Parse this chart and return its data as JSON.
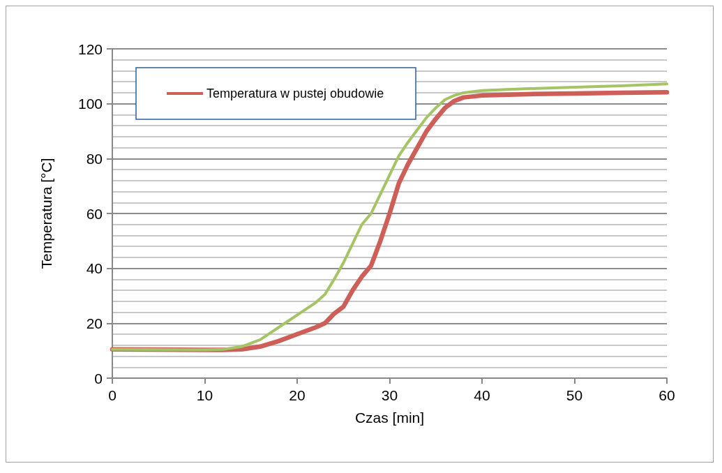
{
  "chart_data": {
    "type": "line",
    "xlabel": "Czas [min]",
    "ylabel": "Temperatura [°C]",
    "xlim": [
      0,
      60
    ],
    "xticks": [
      0,
      10,
      20,
      30,
      40,
      50,
      60
    ],
    "ylim": [
      0,
      120
    ],
    "yticks": [
      0,
      20,
      40,
      60,
      80,
      100,
      120
    ],
    "grid": "y",
    "legend": "top left",
    "marker": "none",
    "line_style": "solid",
    "series": [
      {
        "name": "Temperatura w pustej obudowie",
        "color": "#cd5f58",
        "x": [
          0,
          10,
          12,
          14,
          16,
          18,
          20,
          22,
          23,
          24,
          25,
          26,
          27,
          28,
          29,
          30,
          31,
          32,
          33,
          34,
          35,
          36,
          37,
          38,
          40,
          45,
          50,
          55,
          60
        ],
        "values": [
          10.5,
          10.3,
          10.3,
          10.5,
          11.5,
          13.5,
          16,
          18.5,
          20,
          23.5,
          26,
          32,
          37,
          41,
          50,
          60,
          71,
          78,
          84,
          90,
          94.5,
          98.5,
          101,
          102.3,
          103,
          103.5,
          103.7,
          104,
          104.2
        ]
      },
      {
        "color": "#a4c465",
        "x": [
          0,
          10,
          12,
          14,
          16,
          18,
          20,
          22,
          23,
          24,
          25,
          26,
          27,
          28,
          29,
          30,
          31,
          32,
          33,
          34,
          35,
          36,
          37,
          38,
          40,
          45,
          50,
          55,
          60
        ],
        "values": [
          10.5,
          10.3,
          10.5,
          11.5,
          14,
          18.5,
          23,
          27.5,
          30.5,
          36,
          42,
          49,
          56,
          60,
          67,
          74,
          81,
          86,
          90.5,
          95,
          98.5,
          101.5,
          103,
          104,
          104.8,
          105.5,
          106,
          106.5,
          107.2
        ]
      }
    ]
  }
}
